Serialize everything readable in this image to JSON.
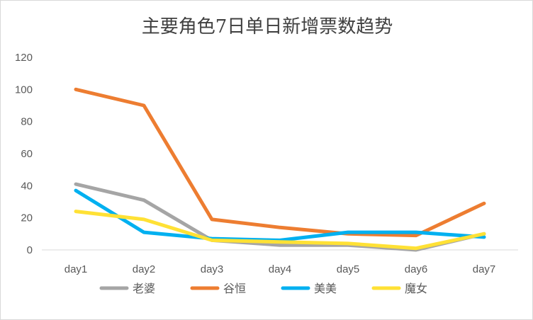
{
  "chart_data": {
    "type": "line",
    "title": "主要角色7日单日新增票数趋势",
    "xlabel": "",
    "ylabel": "",
    "categories": [
      "day1",
      "day2",
      "day3",
      "day4",
      "day5",
      "day6",
      "day7"
    ],
    "ylim": [
      0,
      120
    ],
    "yticks": [
      "0",
      "20",
      "40",
      "60",
      "80",
      "100",
      "120"
    ],
    "grid": false,
    "legend_position": "bottom",
    "series": [
      {
        "name": "老婆",
        "color": "#a5a5a5",
        "values": [
          41,
          31,
          6,
          3,
          3,
          0,
          10
        ]
      },
      {
        "name": "谷恒",
        "color": "#ed7d31",
        "values": [
          100,
          90,
          19,
          14,
          10,
          9,
          29
        ]
      },
      {
        "name": "美美",
        "color": "#00b0f0",
        "values": [
          37,
          11,
          7,
          6,
          11,
          11,
          8
        ]
      },
      {
        "name": "魔女",
        "color": "#ffe135",
        "values": [
          24,
          19,
          6,
          5,
          4,
          1,
          10
        ]
      }
    ]
  }
}
